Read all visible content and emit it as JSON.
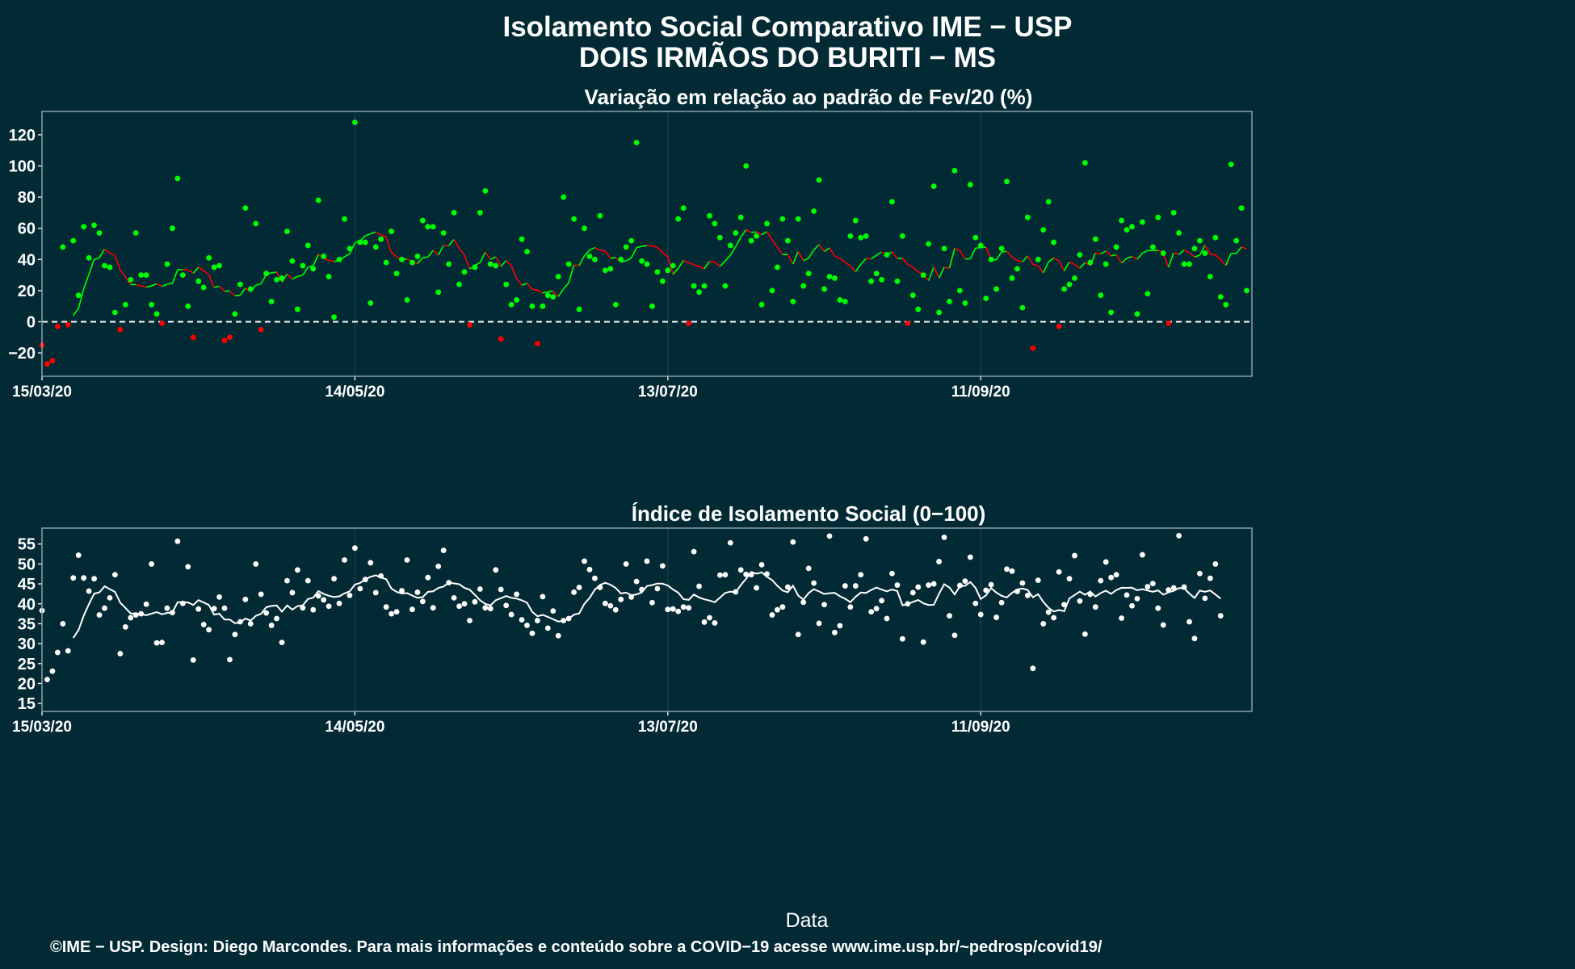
{
  "header": {
    "title_line1": "Isolamento Social Comparativo IME − USP",
    "title_line2": "DOIS IRMÃOS DO BURITI − MS"
  },
  "footer": {
    "credit": "©IME − USP. Design: Diego Marcondes. Para mais informações e conteúdo sobre a COVID−19 acesse www.ime.usp.br/~pedrosp/covid19/"
  },
  "colors": {
    "background": "#022a35",
    "positive": "#00ff00",
    "negative": "#ff0000",
    "index": "#ffffff",
    "frame": "#8aa0a8",
    "grid": "#1f4753"
  },
  "chart_data": [
    {
      "type": "scatter",
      "title": "Variação em relação ao padrão de Fev/20 (%)",
      "xlabel": "",
      "ylabel": "",
      "x_start": "15/03/20",
      "x_ticks": [
        "15/03/20",
        "14/05/20",
        "13/07/20",
        "11/09/20"
      ],
      "x_tick_days": [
        0,
        60,
        120,
        180
      ],
      "x_range_days": [
        0,
        232
      ],
      "ylim": [
        -35,
        135
      ],
      "y_ticks": [
        -20,
        0,
        20,
        40,
        60,
        80,
        100,
        120
      ],
      "reference_line": 0,
      "grid": true,
      "series": [
        {
          "values": [
            -15,
            -27,
            -25,
            -3,
            48,
            -2,
            52,
            17,
            61,
            41,
            62,
            57,
            36,
            35,
            6,
            -5,
            11,
            27,
            57,
            30,
            30,
            11,
            5,
            -1,
            37,
            60,
            92,
            30,
            10,
            -10,
            26,
            22,
            41,
            35,
            36,
            -12,
            -10,
            5,
            24,
            73,
            21,
            63,
            -5,
            31,
            13,
            27,
            28,
            58,
            39,
            8,
            36,
            49,
            34,
            78,
            42,
            29,
            3,
            40,
            66,
            47,
            128,
            51,
            51,
            12,
            48,
            53,
            38,
            58,
            31,
            40,
            14,
            38,
            42,
            65,
            61,
            61,
            19,
            57,
            37,
            70,
            24,
            32,
            -2,
            35,
            70,
            84,
            37,
            36,
            -11,
            24,
            11,
            14,
            53,
            45,
            10,
            -14,
            10,
            17,
            16,
            29,
            80,
            37,
            66,
            8,
            60,
            42,
            40,
            68,
            33,
            34,
            11,
            40,
            48,
            52,
            115,
            39,
            37,
            10,
            32,
            26,
            33,
            36,
            66,
            73,
            -1,
            23,
            19,
            23,
            68,
            63,
            54,
            23,
            49,
            57,
            67,
            100,
            52,
            55,
            11,
            63,
            20,
            35,
            66,
            52,
            13,
            66,
            23,
            31,
            71,
            91,
            21,
            29,
            28,
            14,
            13,
            55,
            65,
            54,
            55,
            26,
            31,
            27,
            43,
            77,
            26,
            55,
            -1,
            17,
            8,
            30,
            50,
            87,
            6,
            47,
            13,
            97,
            20,
            12,
            88,
            54,
            49,
            15,
            40,
            21,
            47,
            90,
            28,
            34,
            9,
            67,
            -17,
            40,
            59,
            77,
            51,
            -3,
            21,
            24,
            28,
            43,
            102,
            38,
            53,
            17,
            37,
            6,
            48,
            65,
            59,
            61,
            5,
            64,
            18,
            48,
            67,
            44,
            -1,
            70,
            57,
            37,
            37,
            47,
            52,
            44,
            29,
            54,
            16,
            11,
            101,
            52,
            73,
            20
          ]
        }
      ]
    },
    {
      "type": "scatter",
      "title": "Índice de Isolamento Social (0−100)",
      "xlabel": "Data",
      "ylabel": "",
      "x_start": "15/03/20",
      "x_ticks": [
        "15/03/20",
        "14/05/20",
        "13/07/20",
        "11/09/20"
      ],
      "x_tick_days": [
        0,
        60,
        120,
        180
      ],
      "x_range_days": [
        0,
        232
      ],
      "ylim": [
        13,
        59
      ],
      "y_ticks": [
        15,
        20,
        25,
        30,
        35,
        40,
        45,
        50,
        55
      ],
      "grid": true,
      "series": [
        {
          "values": [
            38.3,
            21,
            23.1,
            27.8,
            35,
            28.2,
            46.5,
            52.2,
            46.5,
            43.2,
            46.3,
            37.2,
            38.9,
            41.5,
            47.3,
            27.5,
            34.2,
            36.5,
            37.2,
            37.5,
            39.9,
            50,
            30.2,
            30.3,
            38.9,
            37.8,
            55.7,
            40.1,
            49.3,
            25.9,
            38.7,
            34.8,
            33.5,
            38.8,
            41.7,
            38.9,
            26,
            32.3,
            35.5,
            41.1,
            35,
            50,
            42.4,
            37.7,
            34.6,
            36.3,
            30.3,
            45.8,
            42.8,
            48.5,
            39,
            45.8,
            38.5,
            42,
            41,
            39.4,
            46.3,
            40.1,
            51,
            42.1,
            54,
            43.8,
            46.1,
            50.3,
            42.8,
            47,
            39.2,
            37.5,
            38,
            43.3,
            51,
            38.6,
            42.9,
            40.6,
            46.6,
            39,
            49.4,
            53.4,
            45.3,
            41.5,
            39.4,
            40,
            35.8,
            40.5,
            43.7,
            39,
            38.8,
            48.5,
            43.6,
            39.6,
            37.3,
            42.4,
            36,
            34.6,
            32.6,
            35.8,
            41.8,
            33.9,
            38.2,
            32,
            35.8,
            36.3,
            42.9,
            44.1,
            50.7,
            48.6,
            46.4,
            44.1,
            40.1,
            39.5,
            38.5,
            41.1,
            50,
            41.7,
            45.6,
            43.6,
            50.7,
            40.3,
            43.8,
            49.5,
            38.6,
            38.7,
            38.1,
            39.2,
            39,
            53.1,
            44.4,
            35.4,
            36.5,
            35.2,
            47.2,
            47.3,
            55.3,
            43,
            48.5,
            47.4,
            47.3,
            44,
            49.8,
            47.5,
            37.2,
            38.5,
            39.2,
            44.2,
            55.5,
            32.3,
            40.4,
            48.9,
            45.2,
            35.1,
            39.8,
            57,
            32.8,
            34.5,
            44.5,
            39.2,
            44.5,
            47.3,
            56.3,
            38,
            38.8,
            40.8,
            36.3,
            47.6,
            44.7,
            31.2,
            40,
            42.8,
            44.2,
            30.4,
            44.7,
            45,
            50.6,
            56.7,
            37,
            32.1,
            44.6,
            45.7,
            51.7,
            40.1,
            37.3,
            43.4,
            44.8,
            36.6,
            40.3,
            48.7,
            48.2,
            43.1,
            45.2,
            42.1,
            23.8,
            45.9,
            35,
            37.9,
            36.5,
            48,
            39.8,
            46.3,
            52.1,
            40.7,
            32.4,
            42.4,
            39.2,
            45.8,
            50.5,
            46.6,
            47.3,
            36.4,
            42.2,
            39.5,
            41.3,
            52.3,
            44.3,
            45.1,
            38.9,
            34.7,
            43.5,
            44,
            57.1,
            44.2,
            35.5,
            31.3,
            47.6,
            41.4,
            46.4,
            50,
            37
          ]
        }
      ]
    }
  ]
}
